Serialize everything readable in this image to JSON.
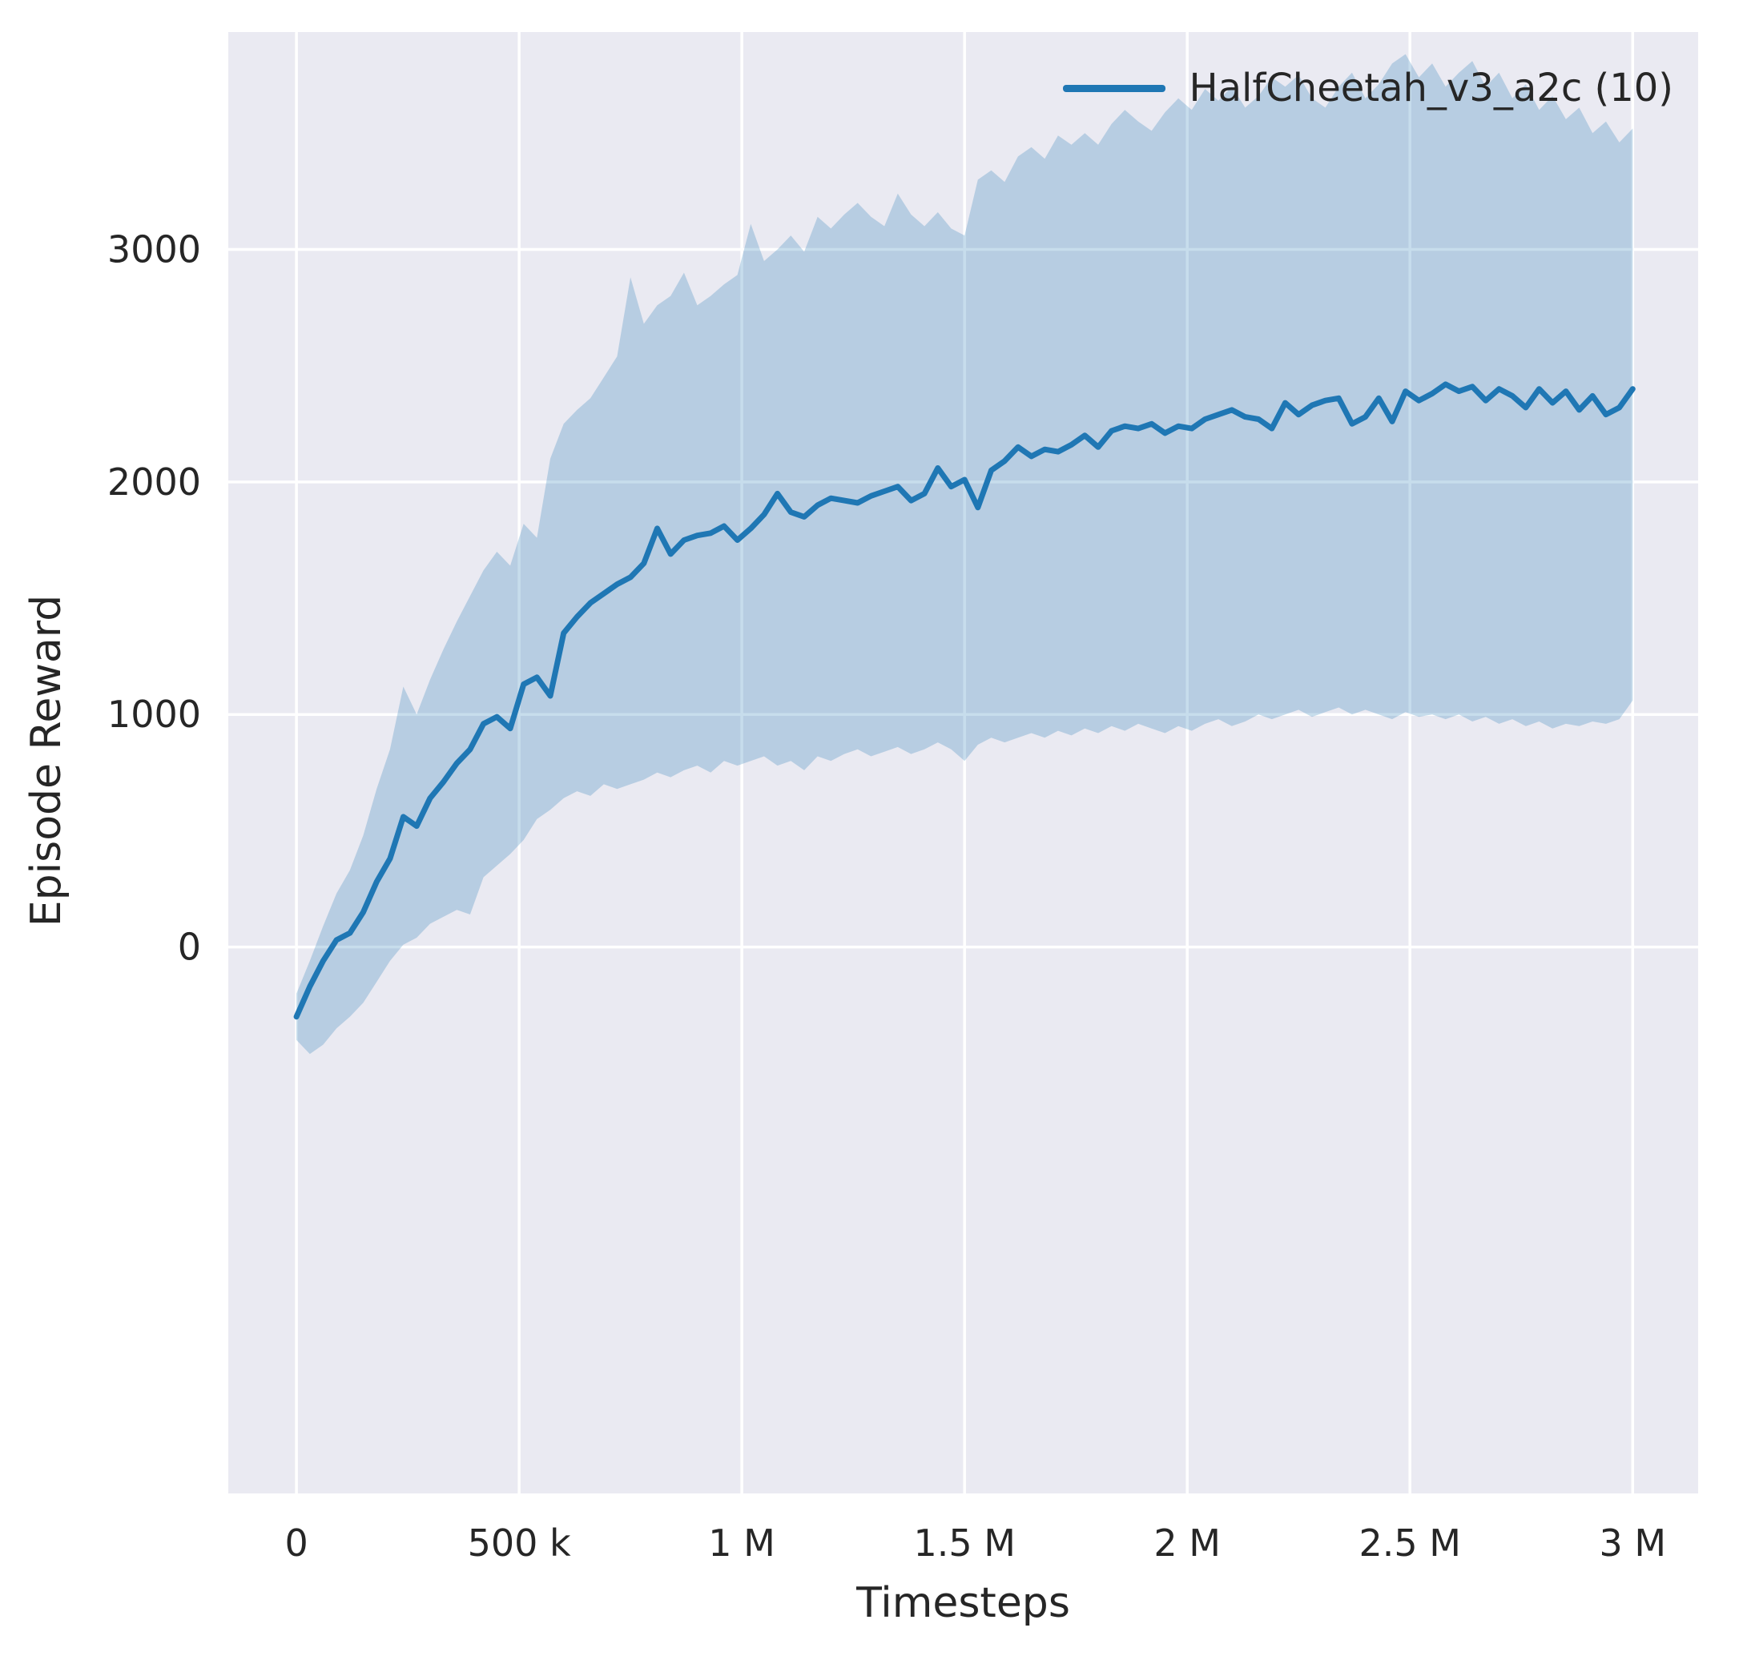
{
  "chart_data": {
    "type": "line",
    "title": "",
    "xlabel": "Timesteps",
    "ylabel": "Episode Reward",
    "grid": true,
    "legend_position": "upper right",
    "plot_background": "#eaeaf2",
    "grid_color": "#ffffff",
    "text_color": "#262626",
    "xlim": [
      -153000,
      3147000
    ],
    "ylim": [
      -2350,
      3935
    ],
    "xticks": [
      {
        "value": 0,
        "label": "0"
      },
      {
        "value": 500000,
        "label": "500 k"
      },
      {
        "value": 1000000,
        "label": "1 M"
      },
      {
        "value": 1500000,
        "label": "1.5 M"
      },
      {
        "value": 2000000,
        "label": "2 M"
      },
      {
        "value": 2500000,
        "label": "2.5 M"
      },
      {
        "value": 3000000,
        "label": "3 M"
      }
    ],
    "yticks": [
      {
        "value": 0,
        "label": "0"
      },
      {
        "value": 1000,
        "label": "1000"
      },
      {
        "value": 2000,
        "label": "2000"
      },
      {
        "value": 3000,
        "label": "3000"
      }
    ],
    "series": [
      {
        "name": "HalfCheetah_v3_a2c (10)",
        "color": "#1f77b4",
        "line_width": 7,
        "band_opacity": 0.25,
        "x": [
          0,
          30000,
          60000,
          90000,
          120000,
          150000,
          180000,
          210000,
          240000,
          270000,
          300000,
          330000,
          360000,
          390000,
          420000,
          450000,
          480000,
          510000,
          540000,
          570000,
          600000,
          630000,
          660000,
          690000,
          720000,
          750000,
          780000,
          810000,
          840000,
          870000,
          900000,
          930000,
          960000,
          990000,
          1020000,
          1050000,
          1080000,
          1110000,
          1140000,
          1170000,
          1200000,
          1230000,
          1260000,
          1290000,
          1320000,
          1350000,
          1380000,
          1410000,
          1440000,
          1470000,
          1500000,
          1530000,
          1560000,
          1590000,
          1620000,
          1650000,
          1680000,
          1710000,
          1740000,
          1770000,
          1800000,
          1830000,
          1860000,
          1890000,
          1920000,
          1950000,
          1980000,
          2010000,
          2040000,
          2070000,
          2100000,
          2130000,
          2160000,
          2190000,
          2220000,
          2250000,
          2280000,
          2310000,
          2340000,
          2370000,
          2400000,
          2430000,
          2460000,
          2490000,
          2520000,
          2550000,
          2580000,
          2610000,
          2640000,
          2670000,
          2700000,
          2730000,
          2760000,
          2790000,
          2820000,
          2850000,
          2880000,
          2910000,
          2940000,
          2970000,
          3000000
        ],
        "mean": [
          -300,
          -170,
          -60,
          30,
          60,
          150,
          280,
          380,
          560,
          520,
          640,
          710,
          790,
          850,
          960,
          990,
          940,
          1130,
          1160,
          1080,
          1350,
          1420,
          1480,
          1520,
          1560,
          1590,
          1650,
          1800,
          1690,
          1750,
          1770,
          1780,
          1810,
          1750,
          1800,
          1860,
          1950,
          1870,
          1850,
          1900,
          1930,
          1920,
          1910,
          1940,
          1960,
          1980,
          1920,
          1950,
          2060,
          1980,
          2010,
          1890,
          2050,
          2090,
          2150,
          2110,
          2140,
          2130,
          2160,
          2200,
          2150,
          2220,
          2240,
          2230,
          2250,
          2210,
          2240,
          2230,
          2270,
          2290,
          2310,
          2280,
          2270,
          2230,
          2340,
          2290,
          2330,
          2350,
          2360,
          2250,
          2280,
          2360,
          2260,
          2390,
          2350,
          2380,
          2420,
          2390,
          2410,
          2350,
          2400,
          2370,
          2320,
          2400,
          2340,
          2390,
          2310,
          2370,
          2290,
          2320,
          2400
        ],
        "upper": [
          -200,
          -60,
          90,
          230,
          330,
          480,
          680,
          850,
          1120,
          1000,
          1150,
          1280,
          1400,
          1510,
          1620,
          1700,
          1640,
          1820,
          1760,
          2100,
          2250,
          2310,
          2360,
          2450,
          2540,
          2880,
          2680,
          2760,
          2800,
          2900,
          2760,
          2800,
          2850,
          2890,
          3110,
          2950,
          3000,
          3060,
          2990,
          3140,
          3090,
          3150,
          3200,
          3140,
          3100,
          3240,
          3150,
          3100,
          3160,
          3090,
          3060,
          3300,
          3340,
          3290,
          3400,
          3440,
          3390,
          3490,
          3450,
          3500,
          3450,
          3540,
          3600,
          3550,
          3510,
          3590,
          3650,
          3600,
          3690,
          3640,
          3700,
          3610,
          3660,
          3740,
          3700,
          3750,
          3650,
          3610,
          3700,
          3760,
          3650,
          3710,
          3800,
          3840,
          3740,
          3800,
          3700,
          3760,
          3810,
          3700,
          3760,
          3650,
          3710,
          3600,
          3660,
          3560,
          3610,
          3500,
          3550,
          3460,
          3520
        ],
        "lower": [
          -400,
          -460,
          -420,
          -350,
          -300,
          -240,
          -150,
          -60,
          10,
          40,
          100,
          130,
          160,
          140,
          300,
          350,
          400,
          460,
          550,
          590,
          640,
          670,
          650,
          700,
          680,
          700,
          720,
          750,
          730,
          760,
          780,
          750,
          800,
          780,
          800,
          820,
          780,
          800,
          760,
          820,
          800,
          830,
          850,
          820,
          840,
          860,
          830,
          850,
          880,
          850,
          800,
          870,
          900,
          880,
          900,
          920,
          900,
          930,
          910,
          940,
          920,
          950,
          930,
          960,
          940,
          920,
          950,
          930,
          960,
          980,
          950,
          970,
          1000,
          980,
          1000,
          1020,
          990,
          1010,
          1030,
          1000,
          1020,
          1000,
          980,
          1010,
          990,
          1000,
          980,
          1000,
          970,
          990,
          960,
          980,
          950,
          970,
          940,
          960,
          950,
          970,
          960,
          980,
          1060
        ]
      }
    ]
  }
}
